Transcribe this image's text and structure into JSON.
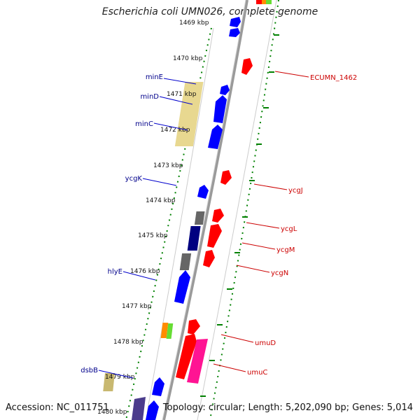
{
  "title": "Escherichia coli UMN026, complete genome",
  "footer": {
    "accession": "Accession: NC_011751",
    "summary": "Topology: circular; Length: 5,202,090 bp; Genes: 5,014"
  },
  "colors": {
    "forward": "#0000ff",
    "reverse": "#ff0000",
    "label_forward": "#00008b",
    "label_reverse": "#cc0000",
    "tick": "#008000",
    "backbone": "#888888",
    "rrna_like": "#e8d890",
    "gray_feature": "#666666",
    "navy_feature": "#000080",
    "magenta_feature": "#ff1493",
    "orange_feature": "#ff8c00",
    "green_feature": "#66dd33"
  },
  "ruler": {
    "unit": "kbp",
    "labels": [
      "1469 kbp",
      "1470 kbp",
      "1471 kbp",
      "1472 kbp",
      "1473 kbp",
      "1474 kbp",
      "1475 kbp",
      "1476 kbp",
      "1477 kbp",
      "1478 kbp",
      "1479 kbp",
      "1480 kbp"
    ]
  },
  "genes": [
    {
      "name": "minE",
      "strand": "forward"
    },
    {
      "name": "minD",
      "strand": "forward"
    },
    {
      "name": "minC",
      "strand": "forward"
    },
    {
      "name": "ycgK",
      "strand": "forward"
    },
    {
      "name": "hlyE",
      "strand": "forward"
    },
    {
      "name": "dsbB",
      "strand": "forward"
    },
    {
      "name": "ECUMN_1462",
      "strand": "reverse"
    },
    {
      "name": "ycgJ",
      "strand": "reverse"
    },
    {
      "name": "ycgL",
      "strand": "reverse"
    },
    {
      "name": "ycgM",
      "strand": "reverse"
    },
    {
      "name": "ycgN",
      "strand": "reverse"
    },
    {
      "name": "umuD",
      "strand": "reverse"
    },
    {
      "name": "umuC",
      "strand": "reverse"
    }
  ]
}
